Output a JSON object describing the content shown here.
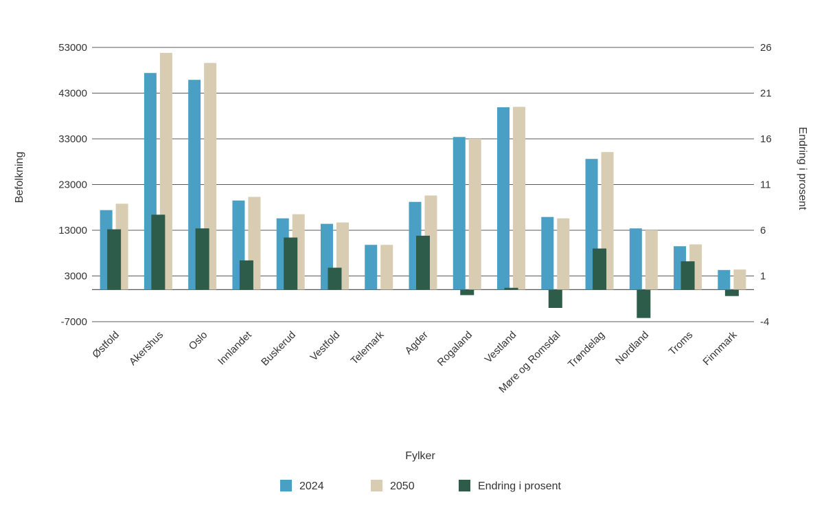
{
  "chart_data": {
    "type": "bar",
    "title": "",
    "xlabel": "Fylker",
    "ylabel_left": "Befolkning",
    "ylabel_right": "Endring i prosent",
    "categories": [
      "Østfold",
      "Akershus",
      "Oslo",
      "Innlandet",
      "Buskerud",
      "Vestfold",
      "Telemark",
      "Agder",
      "Rogaland",
      "Vestland",
      "Møre og Romsdal",
      "Trøndelag",
      "Nordland",
      "Troms",
      "Finnmark"
    ],
    "series": [
      {
        "name": "2024",
        "axis": "left",
        "color": "#4A9FC4",
        "values": [
          17400,
          47400,
          45900,
          19500,
          15600,
          14400,
          9800,
          19200,
          33400,
          39900,
          15900,
          28600,
          13400,
          9500,
          4300
        ]
      },
      {
        "name": "2050",
        "axis": "left",
        "color": "#D8CDB3",
        "values": [
          18800,
          51800,
          49600,
          20300,
          16500,
          14700,
          9800,
          20600,
          33000,
          40000,
          15600,
          30100,
          13000,
          9900,
          4400
        ]
      },
      {
        "name": "Endring i prosent",
        "axis": "right",
        "color": "#2E5C4B",
        "values": [
          6.6,
          8.2,
          6.7,
          3.2,
          5.7,
          2.4,
          0,
          5.9,
          -0.6,
          0.2,
          -2.0,
          4.5,
          -3.1,
          3.1,
          -0.7
        ]
      }
    ],
    "left_axis": {
      "ticks": [
        53000,
        43000,
        33000,
        23000,
        13000,
        3000,
        -7000
      ],
      "min": -7000,
      "max": 53000
    },
    "right_axis": {
      "ticks": [
        26,
        21,
        16,
        11,
        6,
        1,
        -4
      ],
      "min": -4,
      "max": 26
    },
    "grid": true,
    "legend_position": "bottom",
    "legend": [
      "2024",
      "2050",
      "Endring i prosent"
    ]
  },
  "colors": {
    "series_2024": "#4A9FC4",
    "series_2050": "#D8CDB3",
    "series_change": "#2E5C4B",
    "gridline": "#595959",
    "text": "#333333",
    "background": "#ffffff"
  }
}
